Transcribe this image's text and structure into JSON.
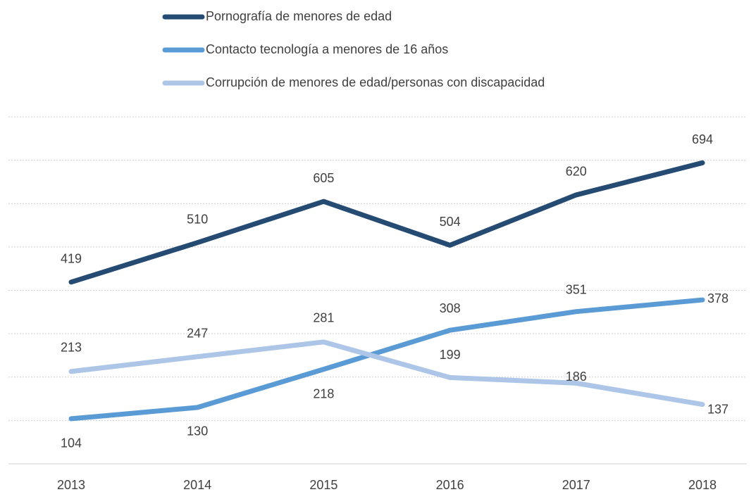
{
  "chart_data": {
    "type": "line",
    "categories": [
      "2013",
      "2014",
      "2015",
      "2016",
      "2017",
      "2018"
    ],
    "series": [
      {
        "name": "Pornografía de menores de edad",
        "color": "#264b73",
        "values": [
          419,
          510,
          605,
          504,
          620,
          694
        ]
      },
      {
        "name": "Contacto tecnología a menores de 16 años",
        "color": "#5b9bd5",
        "values": [
          104,
          130,
          218,
          308,
          351,
          378
        ]
      },
      {
        "name": "Corrupción de menores de edad/personas con discapacidad",
        "color": "#adc6e8",
        "values": [
          213,
          247,
          281,
          199,
          186,
          137
        ]
      }
    ],
    "ylim": [
      0,
      800
    ],
    "yticks": [
      0,
      100,
      200,
      300,
      400,
      500,
      600,
      700,
      800
    ],
    "grid": true,
    "legend": "top"
  }
}
